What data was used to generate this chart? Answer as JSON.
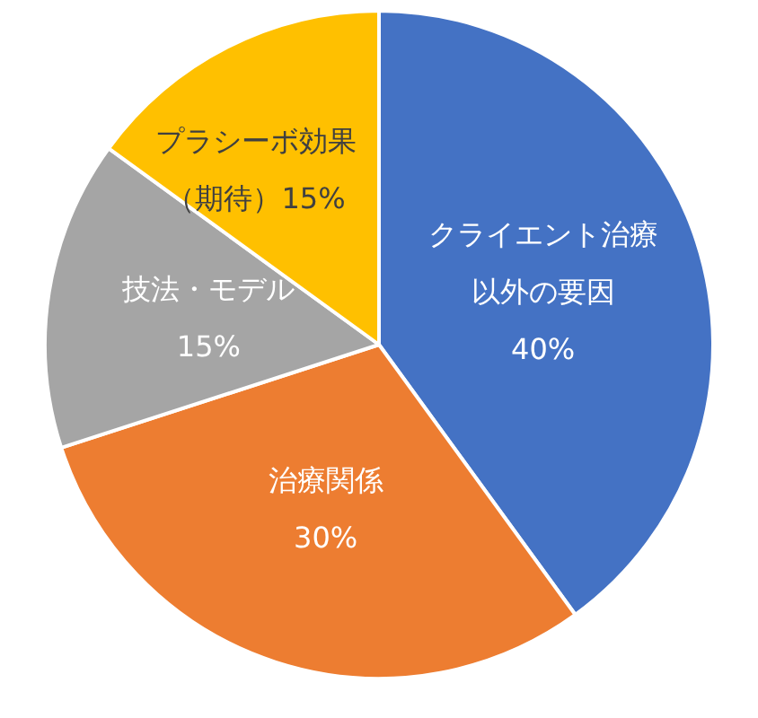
{
  "chart_data": {
    "type": "pie",
    "categories": [
      "クライエント治療以外の要因",
      "治療関係",
      "技法・モデル",
      "プラシーボ効果（期待）"
    ],
    "values": [
      40,
      30,
      15,
      15
    ],
    "colors": [
      "#4472c4",
      "#ed7d31",
      "#a5a5a5",
      "#ffc000"
    ],
    "value_labels": [
      "40%",
      "30%",
      "15%",
      "15%"
    ],
    "legend": false
  }
}
